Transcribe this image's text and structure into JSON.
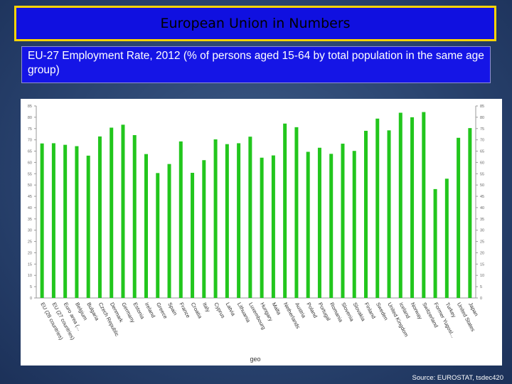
{
  "header": {
    "title": "European Union in Numbers",
    "subtitle": "EU-27 Employment Rate, 2012 (% of persons aged 15-64 by total population in the same age group)"
  },
  "footer": {
    "source": "Source: EUROSTAT, tsdec420"
  },
  "colors": {
    "bar": "#22c61d",
    "title_bg": "#1010e0",
    "title_border": "#ffd400"
  },
  "chart_data": {
    "type": "bar",
    "title": "",
    "xlabel": "geo",
    "ylabel": "",
    "ylim": [
      0,
      85
    ],
    "yticks": [
      0,
      5,
      10,
      15,
      20,
      25,
      30,
      35,
      40,
      45,
      50,
      55,
      60,
      65,
      70,
      75,
      80,
      85
    ],
    "grid": false,
    "categories": [
      "EU (28 countries)",
      "EU (27 countries)",
      "Euro area (...",
      "Belgium",
      "Bulgaria",
      "Czech Republic",
      "Denmark",
      "Germany",
      "Estonia",
      "Ireland",
      "Greece",
      "Spain",
      "France",
      "Croatia",
      "Italy",
      "Cyprus",
      "Latvia",
      "Lithuania",
      "Luxembourg",
      "Hungary",
      "Malta",
      "Netherlands",
      "Austria",
      "Poland",
      "Portugal",
      "Romania",
      "Slovenia",
      "Slovakia",
      "Finland",
      "Sweden",
      "United Kingdom",
      "Iceland",
      "Norway",
      "Switzerland",
      "Former Yugosl...",
      "Turkey",
      "United States",
      "Japan"
    ],
    "values": [
      68.4,
      68.5,
      67.8,
      67.2,
      63.0,
      71.5,
      75.4,
      76.7,
      72.1,
      63.7,
      55.3,
      59.3,
      69.3,
      55.4,
      61.0,
      70.2,
      68.1,
      68.5,
      71.4,
      62.1,
      63.1,
      77.2,
      75.6,
      64.7,
      66.5,
      63.8,
      68.3,
      65.1,
      74.0,
      79.4,
      74.2,
      82.0,
      80.0,
      82.3,
      48.2,
      52.8,
      70.9,
      75.2
    ]
  }
}
